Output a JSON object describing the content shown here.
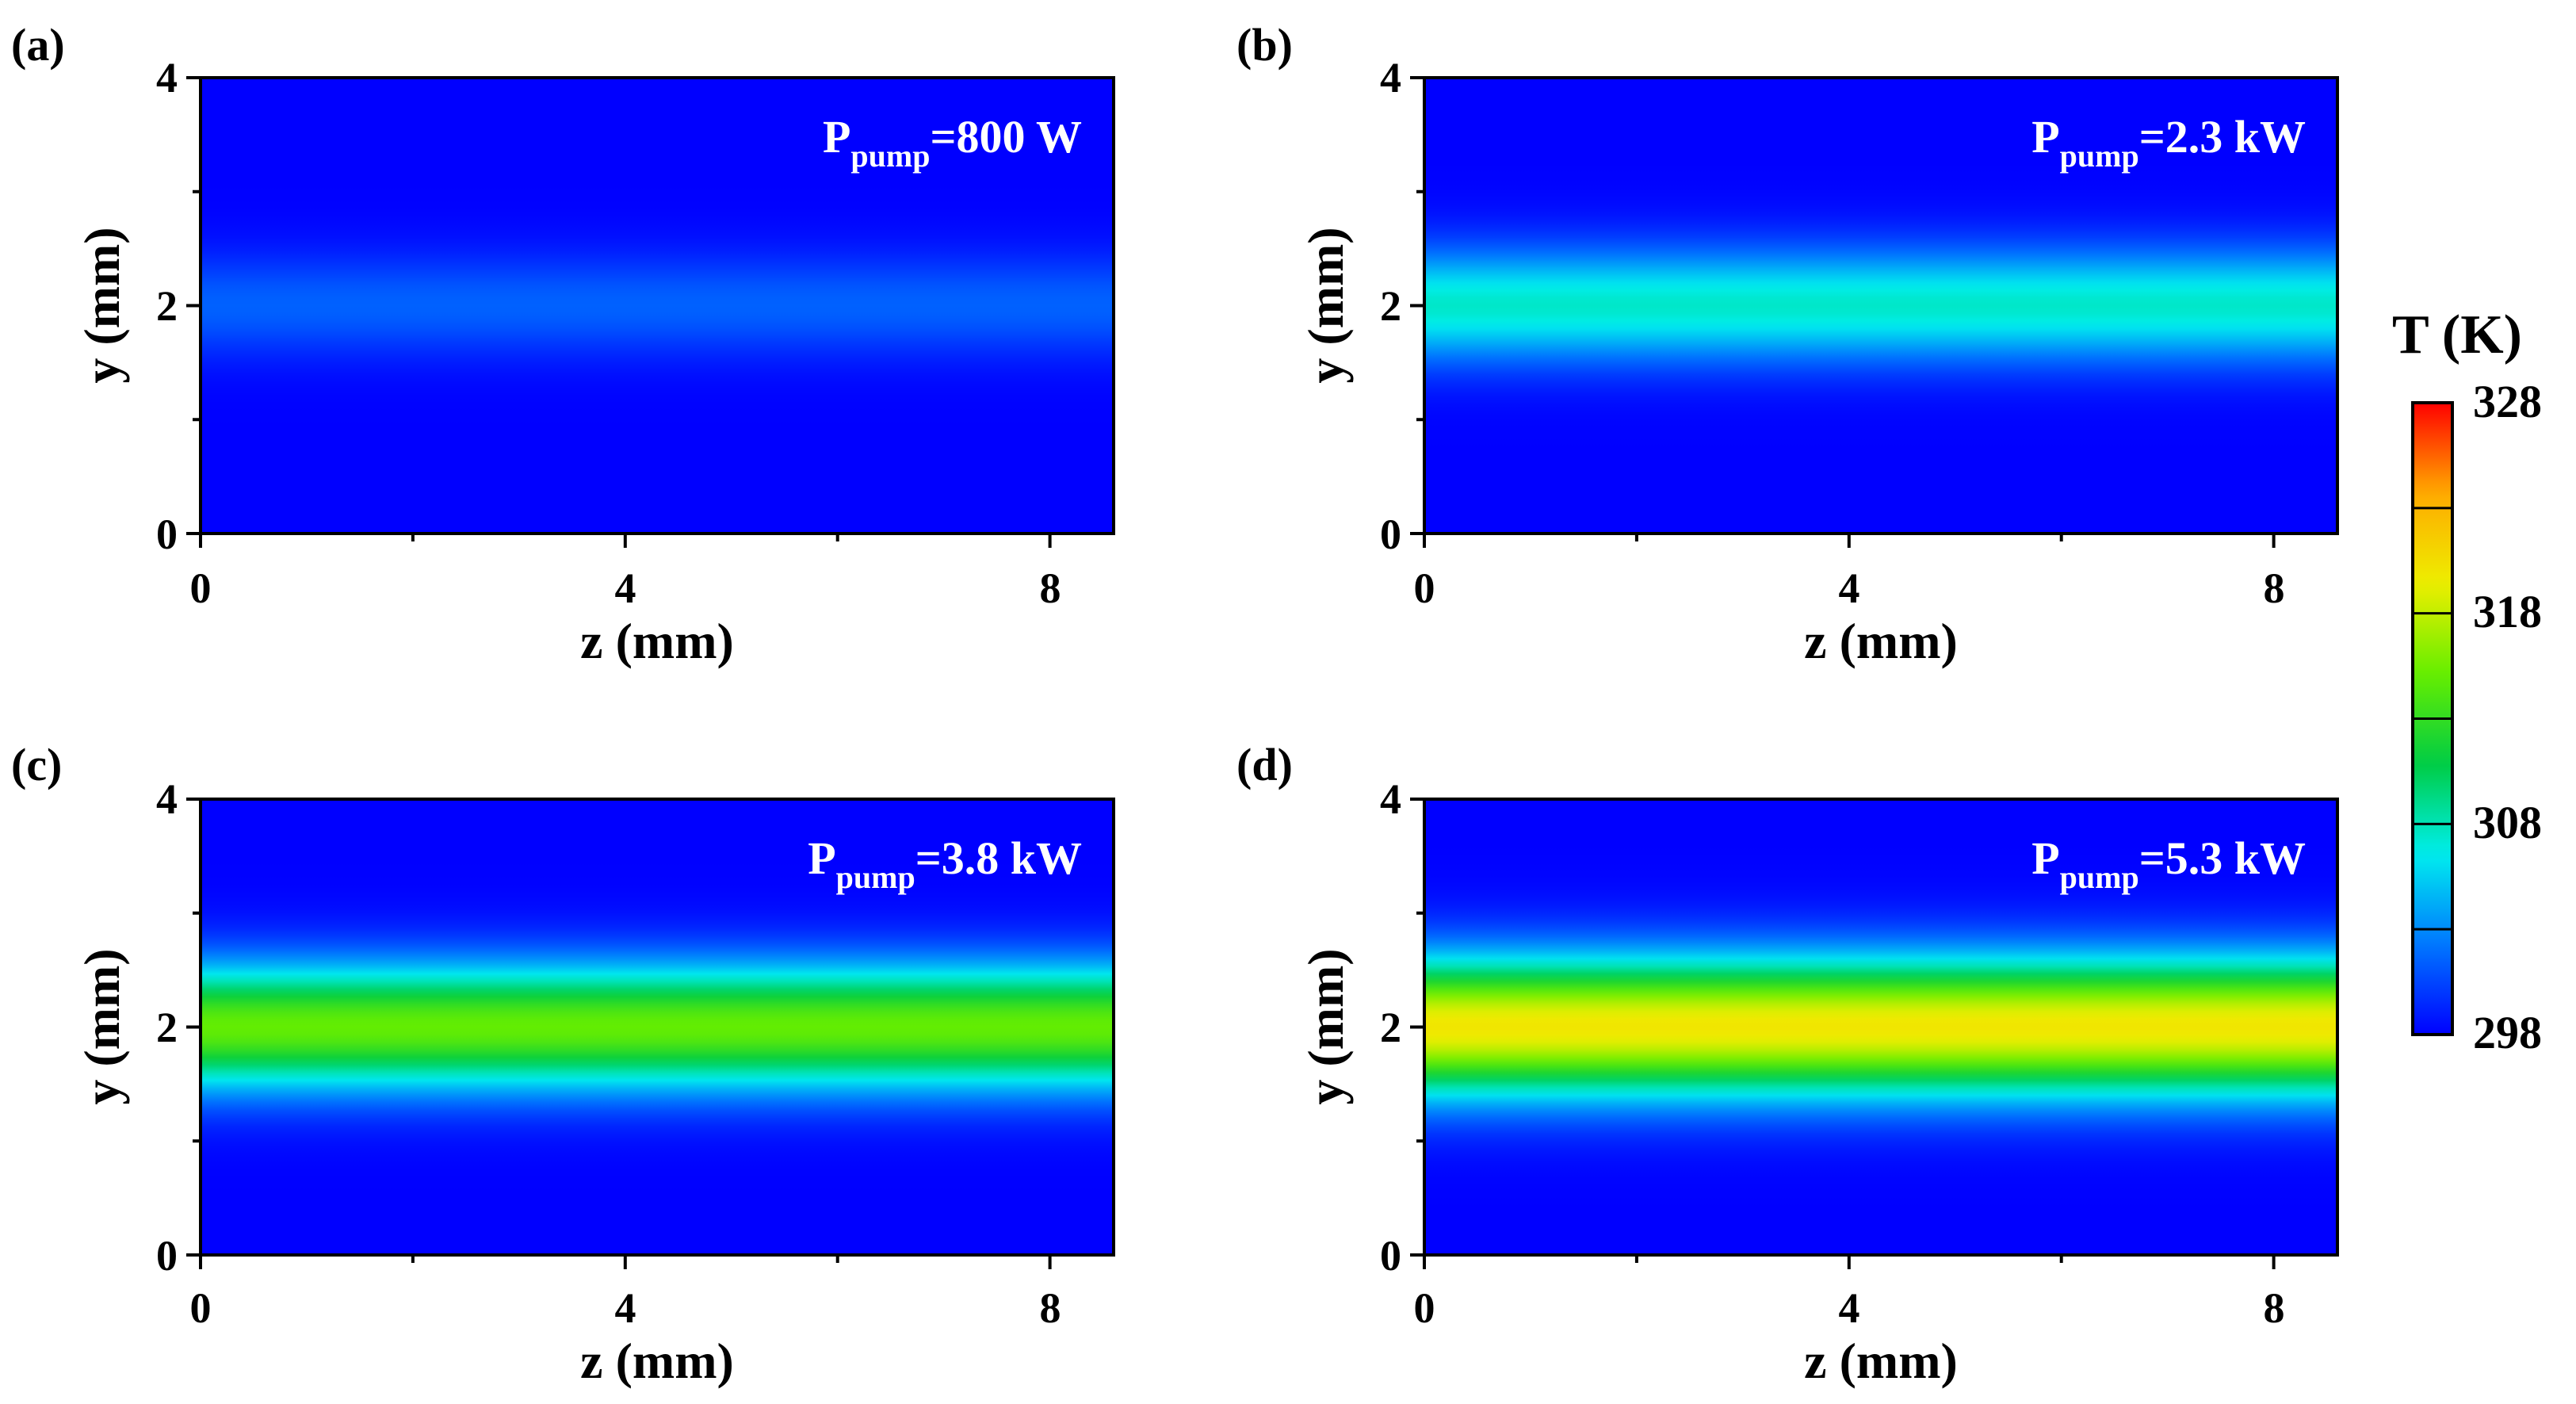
{
  "figure": {
    "colorbar": {
      "title": "T (K)",
      "min": 298,
      "max": 328,
      "tick_values": [
        298,
        308,
        318,
        328
      ],
      "tick_labels": [
        "298",
        "308",
        "318",
        "328"
      ],
      "n_levels": 6,
      "colors": [
        "#0000ff",
        "#0077ff",
        "#00eeee",
        "#00cc44",
        "#66ee00",
        "#eeee00",
        "#ffaa00",
        "#ff0000"
      ]
    }
  },
  "chart_data": [
    {
      "type": "heatmap",
      "panel": "(a)",
      "annotation": {
        "symbol": "P",
        "subscript": "pump",
        "value": "=800 W"
      },
      "xlabel": "z (mm)",
      "ylabel": "y (mm)",
      "xlim": [
        0,
        8.6
      ],
      "ylim": [
        0,
        4
      ],
      "x_ticks": [
        "0",
        "4",
        "8"
      ],
      "y_ticks": [
        "0",
        "2",
        "4"
      ],
      "x_tick_values": [
        0,
        4,
        8
      ],
      "y_tick_values": [
        0,
        2,
        4
      ],
      "x_minor_values": [
        2,
        6
      ],
      "y_minor_values": [
        1,
        3
      ],
      "peak_y": 2.0,
      "peak_temperature_K": 301.5,
      "baseline_temperature_K": 298,
      "profile_width_mm": 0.45
    },
    {
      "type": "heatmap",
      "panel": "(b)",
      "annotation": {
        "symbol": "P",
        "subscript": "pump",
        "value": "=2.3 kW"
      },
      "xlabel": "z (mm)",
      "ylabel": "y (mm)",
      "xlim": [
        0,
        8.6
      ],
      "ylim": [
        0,
        4
      ],
      "x_ticks": [
        "0",
        "4",
        "8"
      ],
      "y_ticks": [
        "0",
        "2",
        "4"
      ],
      "x_tick_values": [
        0,
        4,
        8
      ],
      "y_tick_values": [
        0,
        2,
        4
      ],
      "x_minor_values": [
        2,
        6
      ],
      "y_minor_values": [
        1,
        3
      ],
      "peak_y": 2.0,
      "peak_temperature_K": 307.5,
      "baseline_temperature_K": 298,
      "profile_width_mm": 0.5
    },
    {
      "type": "heatmap",
      "panel": "(c)",
      "annotation": {
        "symbol": "P",
        "subscript": "pump",
        "value": "=3.8 kW"
      },
      "xlabel": "z (mm)",
      "ylabel": "y (mm)",
      "xlim": [
        0,
        8.6
      ],
      "ylim": [
        0,
        4
      ],
      "x_ticks": [
        "0",
        "4",
        "8"
      ],
      "y_ticks": [
        "0",
        "2",
        "4"
      ],
      "x_tick_values": [
        0,
        4,
        8
      ],
      "y_tick_values": [
        0,
        2,
        4
      ],
      "x_minor_values": [
        2,
        6
      ],
      "y_minor_values": [
        1,
        3
      ],
      "peak_y": 2.0,
      "peak_temperature_K": 315,
      "baseline_temperature_K": 298,
      "profile_width_mm": 0.55
    },
    {
      "type": "heatmap",
      "panel": "(d)",
      "annotation": {
        "symbol": "P",
        "subscript": "pump",
        "value": "=5.3 kW"
      },
      "xlabel": "z (mm)",
      "ylabel": "y (mm)",
      "xlim": [
        0,
        8.6
      ],
      "ylim": [
        0,
        4
      ],
      "x_ticks": [
        "0",
        "4",
        "8"
      ],
      "y_ticks": [
        "0",
        "2",
        "4"
      ],
      "x_tick_values": [
        0,
        4,
        8
      ],
      "y_tick_values": [
        0,
        2,
        4
      ],
      "x_minor_values": [
        2,
        6
      ],
      "y_minor_values": [
        1,
        3
      ],
      "peak_y": 2.0,
      "peak_temperature_K": 320,
      "baseline_temperature_K": 298,
      "profile_width_mm": 0.6
    }
  ]
}
